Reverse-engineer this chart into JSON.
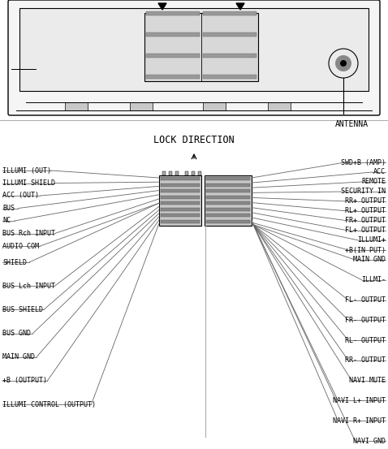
{
  "bg_color": "#ffffff",
  "line_color": "#000000",
  "gray_line": "#aaaaaa",
  "dark_gray": "#555555",
  "title": "LOCK DIRECTION",
  "antenna_label": "ANTENNA",
  "left_labels_top": [
    "ILLUMI (OUT)",
    "ILLUMI SHIELD",
    "ACC (OUT)",
    "BUS",
    "NC",
    "BUS Rch INPUT",
    "AUDIO COM"
  ],
  "left_labels_bottom": [
    "SHIELD",
    "BUS Lch INPUT",
    "BUS SHIELD",
    "BUS GND",
    "MAIN GND",
    "+B (OUTPUT)",
    "ILLUMI CONTROL (OUTPUT)"
  ],
  "right_labels_top": [
    "SWD+B (AMP)",
    "ACC",
    "REMOTE",
    "SECURITY IN",
    "RR+ OUTPUT",
    "RL+ OUTPUT",
    "FR+ OUTPUT",
    "FL+ OUTPUT",
    "ILLUMI+",
    "+B(IN PUT)"
  ],
  "right_labels_bottom": [
    "MAIN GND",
    "ILLMI-",
    "FL- OUTPUT",
    "FR- OUTPUT",
    "RL- OUTPUT",
    "RR- OUTPUT",
    "NAVI MUTE",
    "NAVI L+ INPUT",
    "NAVI R+ INPUT",
    "NAVI GND"
  ],
  "fig_width": 4.78,
  "fig_height": 5.53,
  "dpi": 100
}
